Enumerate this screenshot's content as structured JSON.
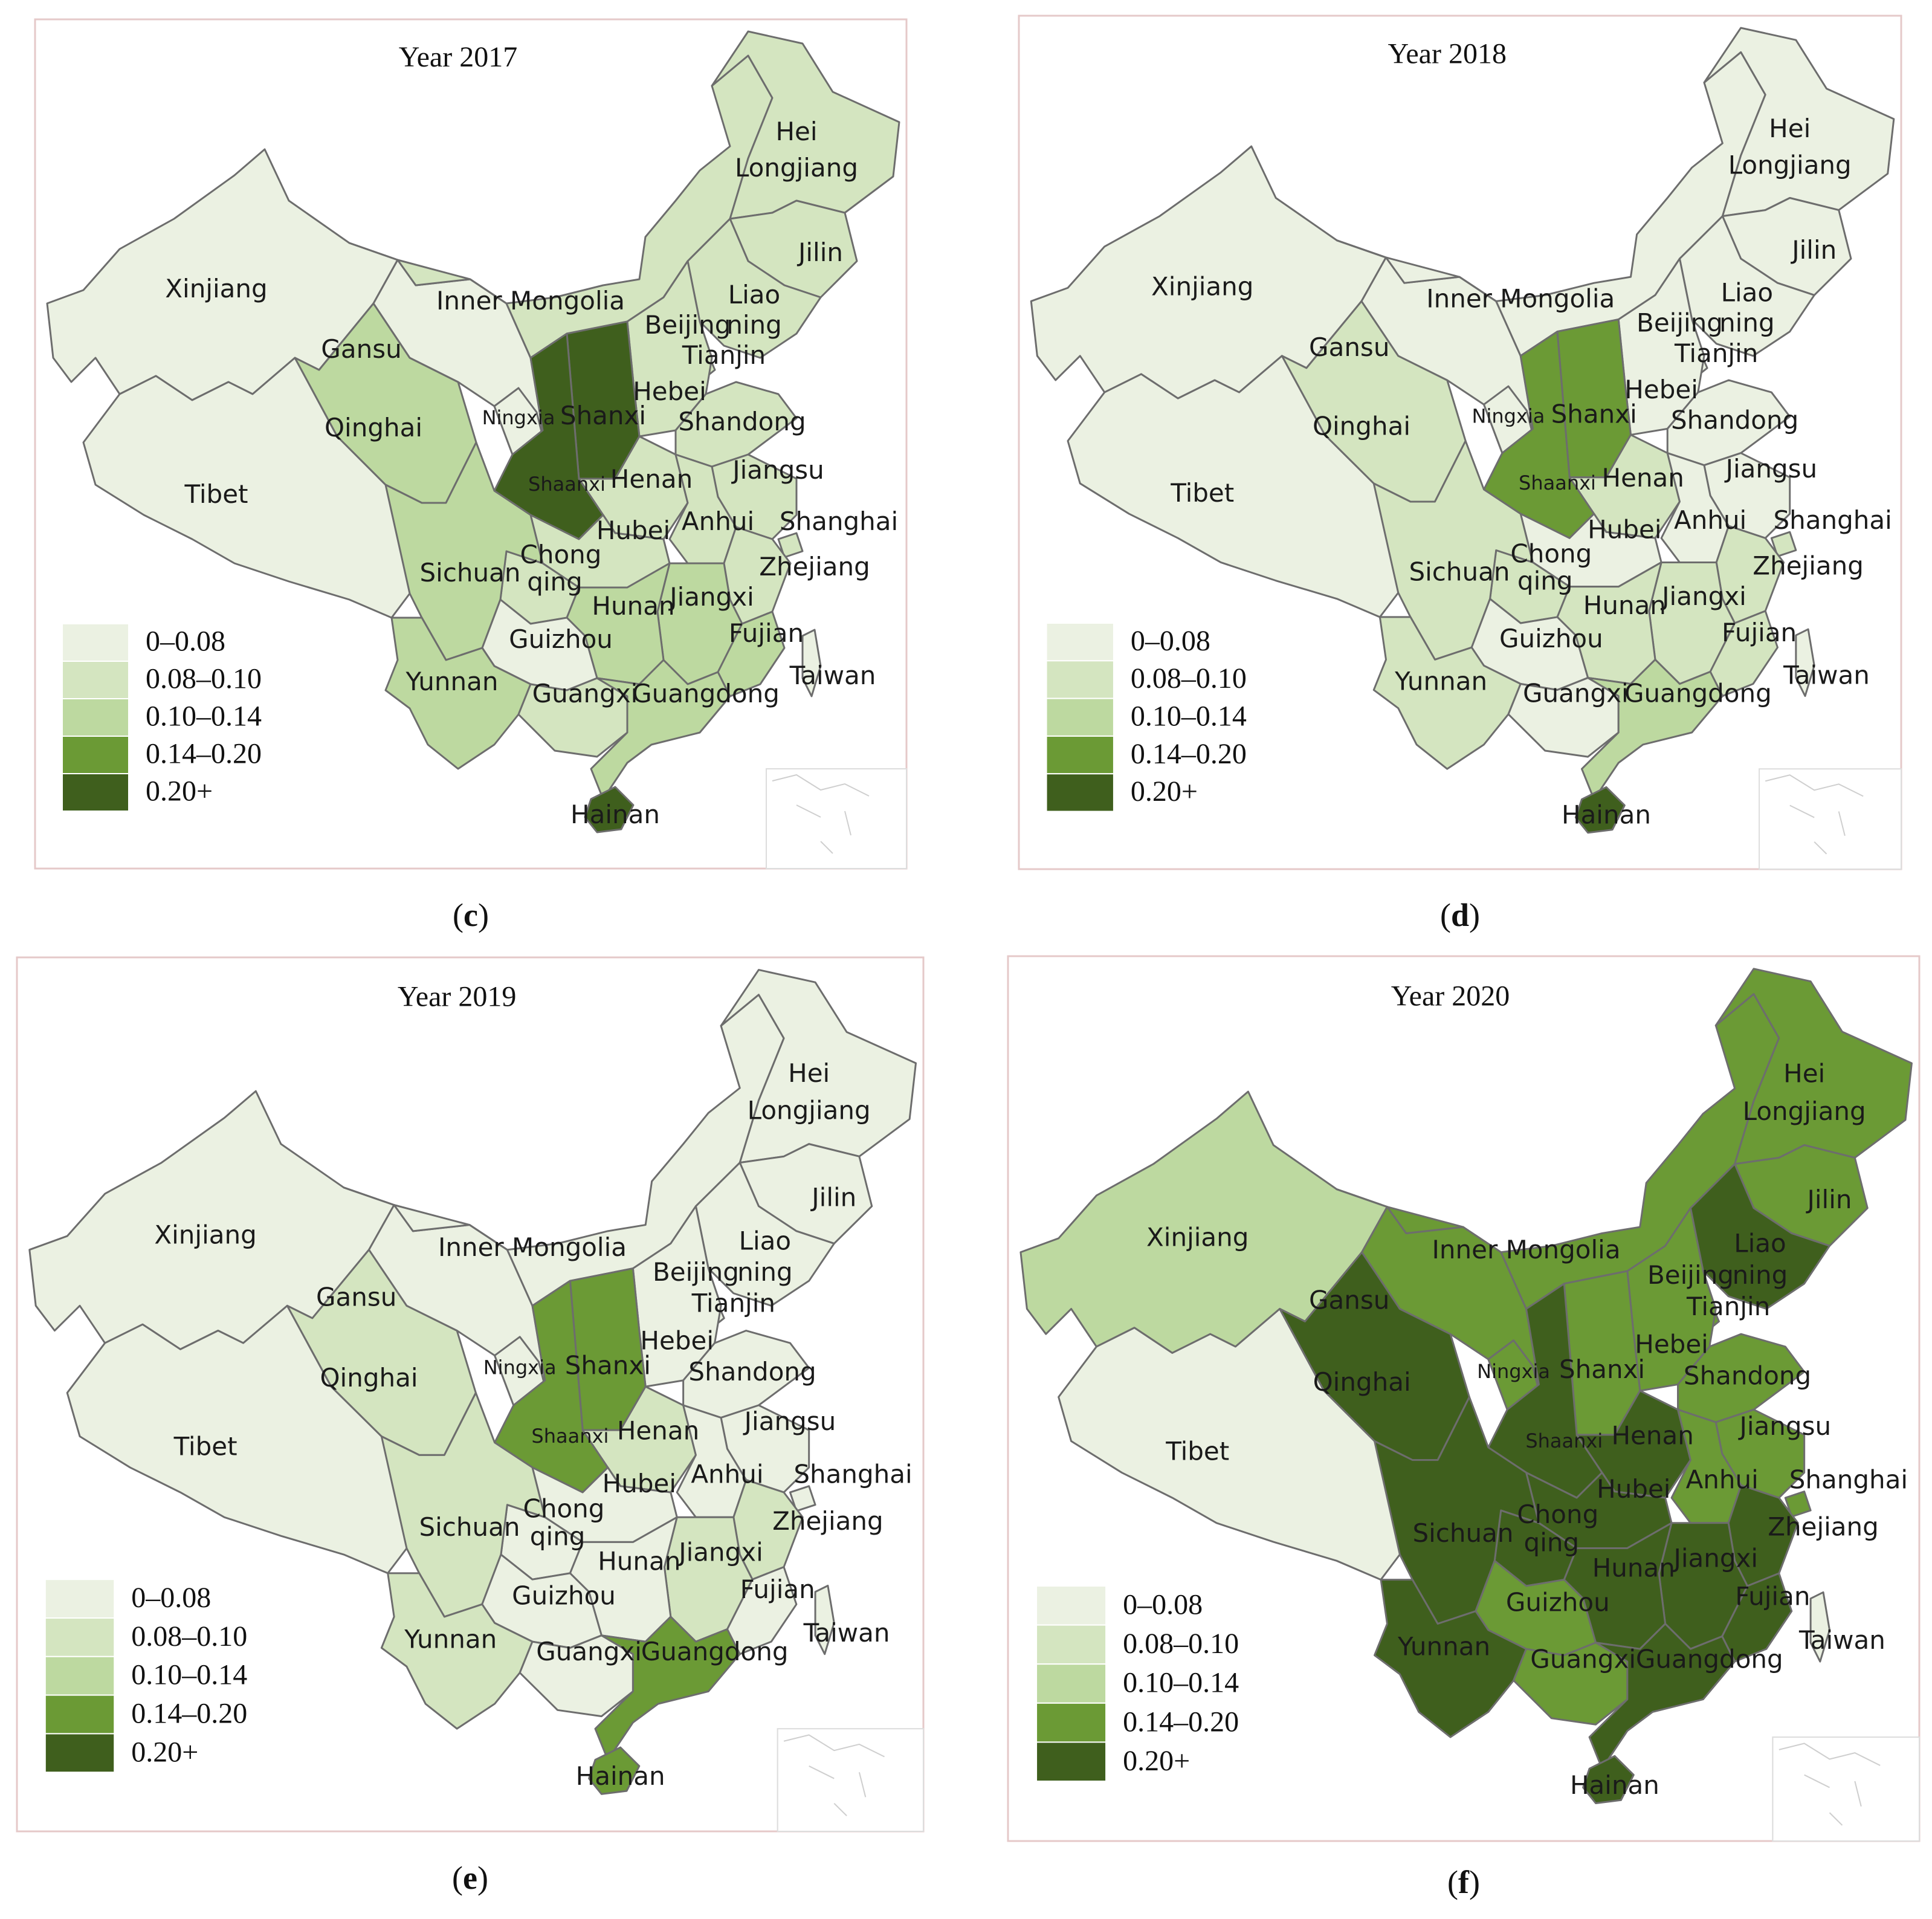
{
  "panels": [
    {
      "id": "c",
      "title": "Year 2017",
      "caption_letter": "c",
      "classes": {
        "Heilongjiang": 1,
        "Jilin": 1,
        "Liaoning": 1,
        "Inner Mongolia": 1,
        "Beijing": 4,
        "Tianjin": 1,
        "Hebei": 1,
        "Shandong": 1,
        "Shanxi": 4,
        "Shaanxi": 4,
        "Ningxia": 0,
        "Gansu": 0,
        "Xinjiang": 0,
        "Qinghai": 2,
        "Tibet": 0,
        "Sichuan": 2,
        "Chongqing": 1,
        "Henan": 1,
        "Hubei": 1,
        "Anhui": 1,
        "Jiangsu": 1,
        "Shanghai": 1,
        "Zhejiang": 1,
        "Jiangxi": 2,
        "Hunan": 2,
        "Guizhou": 0,
        "Yunnan": 2,
        "Guangxi": 1,
        "Guangdong": 2,
        "Fujian": 2,
        "Hainan": 4,
        "Taiwan": 0
      }
    },
    {
      "id": "d",
      "title": "Year 2018",
      "caption_letter": "d",
      "classes": {
        "Heilongjiang": 0,
        "Jilin": 0,
        "Liaoning": 0,
        "Inner Mongolia": 0,
        "Beijing": 4,
        "Tianjin": 0,
        "Hebei": 0,
        "Shandong": 0,
        "Shanxi": 3,
        "Shaanxi": 3,
        "Ningxia": 0,
        "Gansu": 0,
        "Xinjiang": 0,
        "Qinghai": 1,
        "Tibet": 0,
        "Sichuan": 1,
        "Chongqing": 1,
        "Henan": 1,
        "Hubei": 0,
        "Anhui": 0,
        "Jiangsu": 0,
        "Shanghai": 1,
        "Zhejiang": 1,
        "Jiangxi": 1,
        "Hunan": 1,
        "Guizhou": 0,
        "Yunnan": 1,
        "Guangxi": 0,
        "Guangdong": 2,
        "Fujian": 1,
        "Hainan": 4,
        "Taiwan": 0
      }
    },
    {
      "id": "e",
      "title": "Year 2019",
      "caption_letter": "e",
      "classes": {
        "Heilongjiang": 0,
        "Jilin": 0,
        "Liaoning": 0,
        "Inner Mongolia": 0,
        "Beijing": 4,
        "Tianjin": 0,
        "Hebei": 0,
        "Shandong": 0,
        "Shanxi": 3,
        "Shaanxi": 3,
        "Ningxia": 0,
        "Gansu": 0,
        "Xinjiang": 0,
        "Qinghai": 1,
        "Tibet": 0,
        "Sichuan": 1,
        "Chongqing": 0,
        "Henan": 1,
        "Hubei": 0,
        "Anhui": 0,
        "Jiangsu": 0,
        "Shanghai": 0,
        "Zhejiang": 1,
        "Jiangxi": 1,
        "Hunan": 0,
        "Guizhou": 0,
        "Yunnan": 1,
        "Guangxi": 0,
        "Guangdong": 3,
        "Fujian": 0,
        "Hainan": 3,
        "Taiwan": 0
      }
    },
    {
      "id": "f",
      "title": "Year 2020",
      "caption_letter": "f",
      "classes": {
        "Heilongjiang": 3,
        "Jilin": 3,
        "Liaoning": 4,
        "Inner Mongolia": 3,
        "Beijing": 4,
        "Tianjin": 3,
        "Hebei": 3,
        "Shandong": 3,
        "Shanxi": 3,
        "Shaanxi": 4,
        "Ningxia": 3,
        "Gansu": 3,
        "Xinjiang": 2,
        "Qinghai": 4,
        "Tibet": 0,
        "Sichuan": 4,
        "Chongqing": 4,
        "Henan": 4,
        "Hubei": 4,
        "Anhui": 3,
        "Jiangsu": 3,
        "Shanghai": 3,
        "Zhejiang": 4,
        "Jiangxi": 4,
        "Hunan": 4,
        "Guizhou": 3,
        "Yunnan": 4,
        "Guangxi": 3,
        "Guangdong": 4,
        "Fujian": 4,
        "Hainan": 4,
        "Taiwan": 0
      }
    }
  ],
  "legend": [
    {
      "label": "0–0.08",
      "color": "#ebf1e2"
    },
    {
      "label": "0.08–0.10",
      "color": "#d4e5c0"
    },
    {
      "label": "0.10–0.14",
      "color": "#bdd9a0"
    },
    {
      "label": "0.14–0.20",
      "color": "#6b9a35"
    },
    {
      "label": "0.20+",
      "color": "#3f5f1d"
    }
  ],
  "labels": {
    "Xinjiang": "Xinjiang",
    "Tibet": "Tibet",
    "Qinghai": "Qinghai",
    "Gansu": "Gansu",
    "Inner Mongolia": "Inner Mongolia",
    "Hei1": "Hei",
    "Hei2": "Longjiang",
    "Jilin": "Jilin",
    "Liao1": "Liao",
    "Liao2": "ning",
    "Beijing": "Beijing",
    "Tianjin": "Tianjin",
    "Hebei": "Hebei",
    "Shandong": "Shandong",
    "Shanxi": "Shanxi",
    "Ningxia": "Ningxia",
    "Shaanxi": "Shaanxi",
    "Henan": "Henan",
    "Jiangsu": "Jiangsu",
    "Anhui": "Anhui",
    "Shanghai": "Shanghai",
    "Hubei": "Hubei",
    "Sichuan": "Sichuan",
    "Chong1": "Chong",
    "Chong2": "qing",
    "Zhejiang": "Zhejiang",
    "Hunan": "Hunan",
    "Jiangxi": "Jiangxi",
    "Guizhou": "Guizhou",
    "Fujian": "Fujian",
    "Yunnan": "Yunnan",
    "Guangxi": "Guangxi",
    "Guangdong": "Guangdong",
    "Taiwan": "Taiwan",
    "Hainan": "Hainan"
  }
}
